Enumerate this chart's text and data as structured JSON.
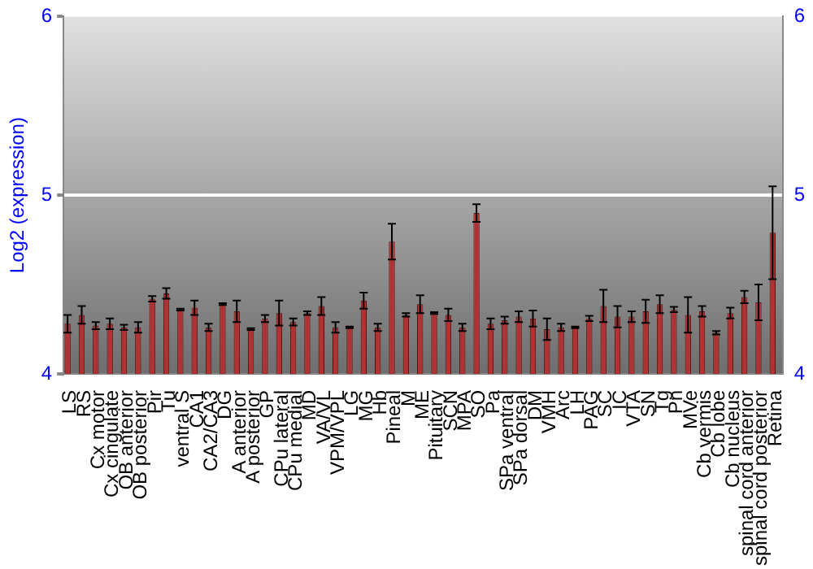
{
  "chart_data": {
    "type": "bar",
    "ylabel": "Log2 (expression)",
    "categories": [
      "LS",
      "RS",
      "Cx motor",
      "Cx cingulate",
      "OB anterior",
      "OB posterior",
      "Pir",
      "Tu",
      "ventral S",
      "CA1",
      "CA2/CA3",
      "DG",
      "A anterior",
      "A posterior",
      "GP",
      "CPu lateral",
      "CPu medial",
      "MD",
      "VA/VL",
      "VPM/VPL",
      "LG",
      "MG",
      "Hb",
      "Pineal",
      "M",
      "ME",
      "Pituitary",
      "SCN",
      "MPA",
      "SO",
      "Pa",
      "SPa ventral",
      "SPa dorsal",
      "DM",
      "VMH",
      "Arc",
      "LH",
      "PAG",
      "SC",
      "IC",
      "VTA",
      "SN",
      "Tg",
      "Pn",
      "MVe",
      "Cb vermis",
      "Cb lobe",
      "Cb nucleus",
      "spinal cord anterior",
      "spinal cord posterior",
      "Retina"
    ],
    "values": [
      4.28,
      4.33,
      4.27,
      4.28,
      4.26,
      4.26,
      4.42,
      4.45,
      4.36,
      4.37,
      4.26,
      4.39,
      4.35,
      4.25,
      4.31,
      4.34,
      4.29,
      4.34,
      4.38,
      4.26,
      4.26,
      4.41,
      4.26,
      4.74,
      4.33,
      4.39,
      4.34,
      4.33,
      4.26,
      4.9,
      4.28,
      4.3,
      4.32,
      4.31,
      4.25,
      4.26,
      4.26,
      4.31,
      4.38,
      4.32,
      4.32,
      4.35,
      4.39,
      4.36,
      4.33,
      4.35,
      4.23,
      4.34,
      4.43,
      4.4,
      4.79
    ],
    "errors": [
      0.05,
      0.05,
      0.02,
      0.03,
      0.015,
      0.03,
      0.015,
      0.03,
      0.005,
      0.04,
      0.02,
      0.005,
      0.06,
      0.005,
      0.02,
      0.07,
      0.02,
      0.01,
      0.05,
      0.03,
      0.005,
      0.045,
      0.02,
      0.1,
      0.01,
      0.05,
      0.005,
      0.035,
      0.02,
      0.05,
      0.03,
      0.02,
      0.03,
      0.045,
      0.06,
      0.02,
      0.005,
      0.015,
      0.09,
      0.06,
      0.03,
      0.065,
      0.05,
      0.015,
      0.1,
      0.03,
      0.01,
      0.03,
      0.035,
      0.1,
      0.26
    ],
    "color": "#b03232",
    "ylim": [
      4,
      6
    ],
    "yticks": [
      4,
      5,
      6
    ],
    "y2lim": [
      4,
      6
    ],
    "y2ticks": [
      4,
      5,
      6
    ],
    "grid": "y",
    "legend": false
  }
}
